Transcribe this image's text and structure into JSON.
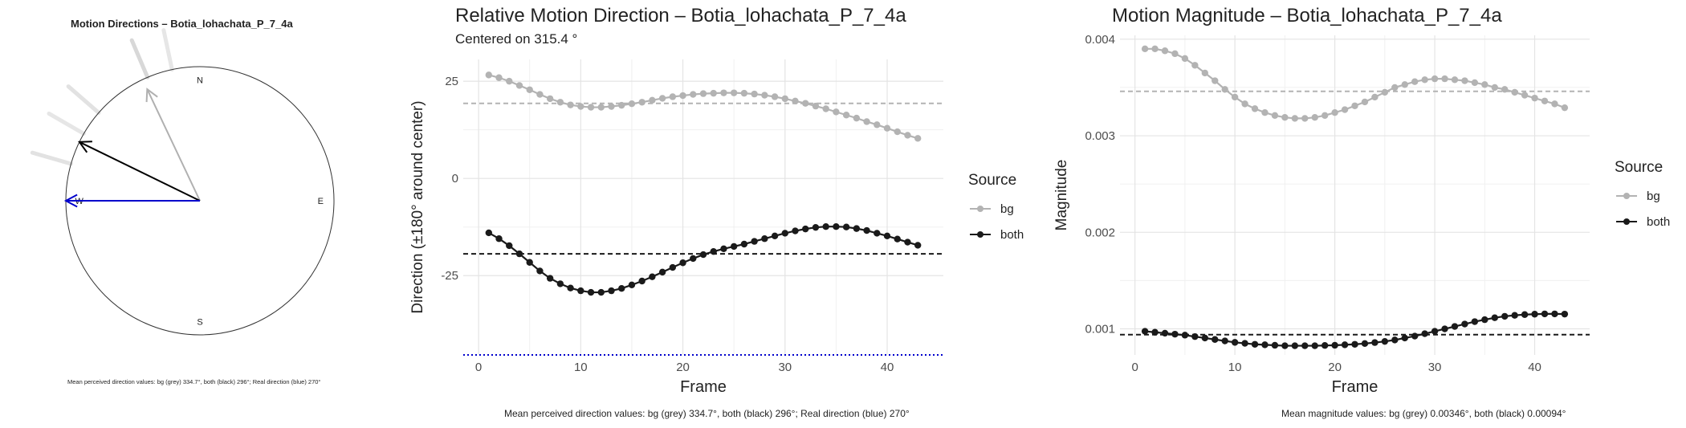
{
  "compass": {
    "title": "Motion Directions – Botia_lohachata_P_7_4a",
    "labels": {
      "n": "N",
      "e": "E",
      "s": "S",
      "w": "W"
    },
    "footnote": "Mean perceived direction values: bg (grey) 334.7°, both (black) 296°; Real direction (blue) 270°",
    "arrows": [
      {
        "name": "bg",
        "angle": 334.7,
        "color": "#b0b0b0",
        "length": 0.92
      },
      {
        "name": "both",
        "angle": 296,
        "color": "#000000",
        "length": 1.0
      },
      {
        "name": "real",
        "angle": 270,
        "color": "#0000cc",
        "length": 1.0
      }
    ],
    "streaks": [
      {
        "angle": 337,
        "color": "#d8d8d8"
      },
      {
        "angle": 348,
        "color": "#e6e6e6"
      },
      {
        "angle": 311,
        "color": "#e2e2e2"
      },
      {
        "angle": 300,
        "color": "#e6e6e6"
      },
      {
        "angle": 286,
        "color": "#e2e2e2"
      }
    ]
  },
  "legend": {
    "title": "Source",
    "items": [
      {
        "label": "bg",
        "color": "#b3b3b3"
      },
      {
        "label": "both",
        "color": "#1a1a1a"
      }
    ]
  },
  "chart_data": [
    {
      "type": "line",
      "title": "Relative Motion Direction – Botia_lohachata_P_7_4a",
      "subtitle": "Centered on  315.4 °",
      "xlabel": "Frame",
      "ylabel": "Direction (±180° around center)",
      "xlim": [
        -1.5,
        45.5
      ],
      "ylim": [
        -45.4,
        30.6
      ],
      "xticks": [
        0,
        10,
        20,
        30,
        40
      ],
      "yticks": [
        25,
        0,
        -25
      ],
      "grid": true,
      "legend_position": "right",
      "footnote": "Mean perceived direction values: bg (grey) 334.7°, both (black) 296°; Real direction (blue) 270°",
      "x": [
        1,
        2,
        3,
        4,
        5,
        6,
        7,
        8,
        9,
        10,
        11,
        12,
        13,
        14,
        15,
        16,
        17,
        18,
        19,
        20,
        21,
        22,
        23,
        24,
        25,
        26,
        27,
        28,
        29,
        30,
        31,
        32,
        33,
        34,
        35,
        36,
        37,
        38,
        39,
        40,
        41,
        42,
        43
      ],
      "series": [
        {
          "name": "bg",
          "color": "#b3b3b3",
          "values": [
            26.6,
            25.9,
            25.0,
            23.9,
            22.8,
            21.6,
            20.5,
            19.6,
            18.9,
            18.5,
            18.3,
            18.3,
            18.5,
            18.8,
            19.2,
            19.6,
            20.1,
            20.6,
            21.0,
            21.3,
            21.6,
            21.8,
            21.9,
            22.0,
            22.0,
            21.9,
            21.7,
            21.4,
            21.0,
            20.5,
            19.9,
            19.3,
            18.6,
            17.9,
            17.1,
            16.3,
            15.5,
            14.6,
            13.8,
            12.9,
            12.0,
            11.1,
            10.3
          ]
        },
        {
          "name": "both",
          "color": "#1a1a1a",
          "values": [
            -14.0,
            -15.5,
            -17.3,
            -19.4,
            -21.6,
            -23.8,
            -25.7,
            -27.1,
            -28.2,
            -28.9,
            -29.3,
            -29.3,
            -28.9,
            -28.3,
            -27.4,
            -26.4,
            -25.3,
            -24.1,
            -22.9,
            -21.7,
            -20.6,
            -19.6,
            -18.8,
            -18.1,
            -17.5,
            -16.9,
            -16.2,
            -15.5,
            -14.8,
            -14.1,
            -13.5,
            -13.0,
            -12.6,
            -12.4,
            -12.4,
            -12.5,
            -12.9,
            -13.4,
            -14.1,
            -14.8,
            -15.6,
            -16.4,
            -17.2
          ]
        }
      ],
      "hlines": [
        {
          "name": "bg mean",
          "value": 19.3,
          "color": "#b3b3b3",
          "dash": "6,4"
        },
        {
          "name": "both mean",
          "value": -19.4,
          "color": "#1a1a1a",
          "dash": "6,4"
        },
        {
          "name": "real direction",
          "value": -45.4,
          "color": "#0000cc",
          "dash": "2,3"
        }
      ]
    },
    {
      "type": "line",
      "title": "Motion Magnitude – Botia_lohachata_P_7_4a",
      "xlabel": "Frame",
      "ylabel": "Magnitude",
      "xlim": [
        -1.5,
        45.5
      ],
      "ylim": [
        0.00073,
        0.00404
      ],
      "xticks": [
        0,
        10,
        20,
        30,
        40
      ],
      "yticks": [
        0.004,
        0.003,
        0.002,
        0.001
      ],
      "ytick_labels": [
        "0.004",
        "0.003",
        "0.002",
        "0.001"
      ],
      "grid": true,
      "legend_position": "right",
      "footnote": "Mean magnitude values: bg (grey) 0.00346°, both (black) 0.00094°",
      "x": [
        1,
        2,
        3,
        4,
        5,
        6,
        7,
        8,
        9,
        10,
        11,
        12,
        13,
        14,
        15,
        16,
        17,
        18,
        19,
        20,
        21,
        22,
        23,
        24,
        25,
        26,
        27,
        28,
        29,
        30,
        31,
        32,
        33,
        34,
        35,
        36,
        37,
        38,
        39,
        40,
        41,
        42,
        43
      ],
      "series": [
        {
          "name": "bg",
          "color": "#b3b3b3",
          "values": [
            0.0039,
            0.0039,
            0.00388,
            0.00385,
            0.0038,
            0.00373,
            0.00365,
            0.00357,
            0.00348,
            0.0034,
            0.00333,
            0.00328,
            0.00324,
            0.00321,
            0.00319,
            0.00318,
            0.00318,
            0.00319,
            0.00321,
            0.00324,
            0.00327,
            0.00331,
            0.00335,
            0.0034,
            0.00345,
            0.0035,
            0.00353,
            0.00356,
            0.00358,
            0.00359,
            0.00359,
            0.00358,
            0.00357,
            0.00355,
            0.00353,
            0.0035,
            0.00348,
            0.00345,
            0.00342,
            0.00339,
            0.00336,
            0.00333,
            0.00329
          ]
        },
        {
          "name": "both",
          "color": "#1a1a1a",
          "values": [
            0.000975,
            0.000965,
            0.000955,
            0.000945,
            0.000935,
            0.00092,
            0.000905,
            0.00089,
            0.000875,
            0.00086,
            0.00085,
            0.00084,
            0.000835,
            0.00083,
            0.000825,
            0.000825,
            0.000825,
            0.000825,
            0.000828,
            0.00083,
            0.000835,
            0.00084,
            0.000848,
            0.000858,
            0.00087,
            0.000885,
            0.000905,
            0.000925,
            0.00095,
            0.000975,
            0.001,
            0.001025,
            0.00105,
            0.001075,
            0.001095,
            0.001115,
            0.00113,
            0.00114,
            0.001148,
            0.001152,
            0.001155,
            0.001155,
            0.001153
          ]
        }
      ],
      "hlines": [
        {
          "name": "bg mean",
          "value": 0.00346,
          "color": "#b3b3b3",
          "dash": "6,4"
        },
        {
          "name": "both mean",
          "value": 0.00094,
          "color": "#1a1a1a",
          "dash": "6,4"
        }
      ]
    }
  ]
}
